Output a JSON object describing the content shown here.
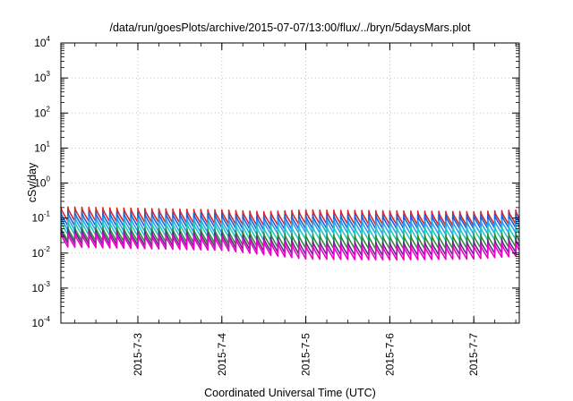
{
  "chart_data": {
    "type": "line",
    "title": "/data/run/goesPlots/archive/2015-07-07/13:00/flux/../bryn/5daysMars.plot",
    "xlabel": "Coordinated Universal Time (UTC)",
    "ylabel": "cSv/day",
    "y_scale": "log",
    "ylim": [
      0.0001,
      10000
    ],
    "y_ticks": [
      {
        "base": "10",
        "exp": "-4"
      },
      {
        "base": "10",
        "exp": "-3"
      },
      {
        "base": "10",
        "exp": "-2"
      },
      {
        "base": "10",
        "exp": "-1"
      },
      {
        "base": "10",
        "exp": "0"
      },
      {
        "base": "10",
        "exp": "1"
      },
      {
        "base": "10",
        "exp": "2"
      },
      {
        "base": "10",
        "exp": "3"
      },
      {
        "base": "10",
        "exp": "4"
      }
    ],
    "xlim": [
      "2015-07-02T02:00",
      "2015-07-07T13:00"
    ],
    "x_ticks": [
      "2015-7-3",
      "2015-7-4",
      "2015-7-5",
      "2015-7-6",
      "2015-7-7"
    ],
    "x_tick_dates": [
      "2015-07-03",
      "2015-07-04",
      "2015-07-05",
      "2015-07-06",
      "2015-07-07"
    ],
    "grid": true,
    "legend": "none",
    "sawtooth_period_hours": 2,
    "x": [
      "2015-07-02T02:00",
      "2015-07-03T00:00",
      "2015-07-04T00:00",
      "2015-07-04T12:00",
      "2015-07-05T00:00",
      "2015-07-06T00:00",
      "2015-07-07T00:00",
      "2015-07-07T13:00"
    ],
    "series": [
      {
        "color": "#d62728",
        "values": [
          0.11,
          0.1,
          0.09,
          0.08,
          0.09,
          0.085,
          0.08,
          0.09
        ]
      },
      {
        "color": "#1f5fd6",
        "values": [
          0.08,
          0.075,
          0.07,
          0.06,
          0.065,
          0.065,
          0.065,
          0.07
        ]
      },
      {
        "color": "#2a9df4",
        "values": [
          0.06,
          0.055,
          0.05,
          0.045,
          0.05,
          0.045,
          0.045,
          0.05
        ]
      },
      {
        "color": "#20c9c0",
        "values": [
          0.045,
          0.04,
          0.038,
          0.03,
          0.032,
          0.03,
          0.03,
          0.033
        ]
      },
      {
        "color": "#2e8b3a",
        "values": [
          0.03,
          0.028,
          0.025,
          0.02,
          0.018,
          0.017,
          0.018,
          0.02
        ]
      },
      {
        "color": "#5a2d82",
        "values": [
          0.025,
          0.022,
          0.02,
          0.015,
          0.012,
          0.011,
          0.012,
          0.014
        ]
      },
      {
        "color": "#ee00cc",
        "values": [
          0.02,
          0.018,
          0.016,
          0.012,
          0.009,
          0.0085,
          0.009,
          0.011
        ]
      }
    ]
  }
}
